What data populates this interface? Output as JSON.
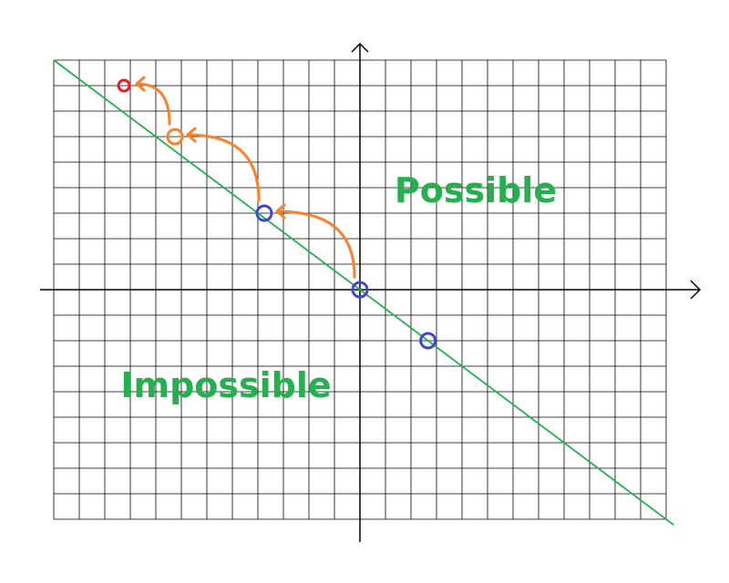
{
  "labels": {
    "possible": "Possible",
    "impossible": "Impossible"
  },
  "colors": {
    "grid": "#000000",
    "axis": "#000000",
    "line": "#22b14c",
    "label": "#22b14c",
    "blue_point": "#3f48cc",
    "orange": "#ff7f27",
    "red_point": "#ed1c24"
  },
  "grid": {
    "x_range": [
      -12,
      12
    ],
    "y_range": [
      -9,
      9
    ]
  },
  "line": {
    "slope": -0.75,
    "intercept": 0
  },
  "points": [
    {
      "x": 0,
      "y": 0,
      "color": "blue"
    },
    {
      "x": 2.667,
      "y": -2,
      "color": "blue"
    },
    {
      "x": -3.75,
      "y": 3,
      "color": "blue"
    },
    {
      "x": -7.25,
      "y": 6,
      "color": "orange"
    },
    {
      "x": -9.25,
      "y": 8,
      "color": "red"
    }
  ],
  "arrows": [
    {
      "from": [
        0,
        0
      ],
      "to": [
        -3.75,
        3
      ]
    },
    {
      "from": [
        -3.75,
        3
      ],
      "to": [
        -7.25,
        6
      ]
    },
    {
      "from": [
        -7.25,
        6
      ],
      "to": [
        -9.25,
        8
      ]
    }
  ]
}
